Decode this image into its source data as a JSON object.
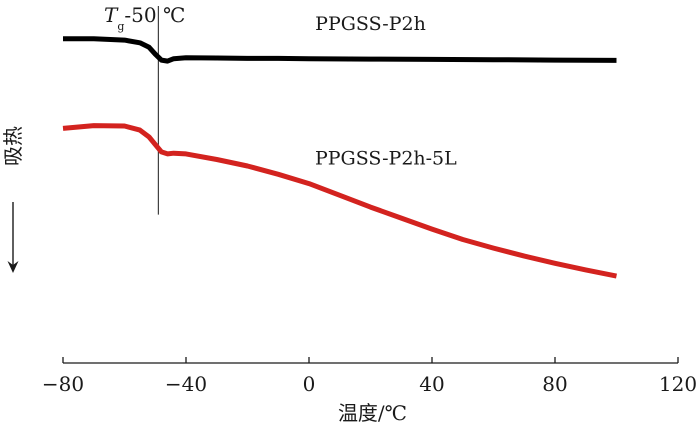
{
  "chart_data": {
    "type": "line",
    "title": "",
    "xlabel": "温度/℃",
    "ylabel": "吸热",
    "ylabel_arrow": "down",
    "xlim": [
      -80,
      120
    ],
    "xticks": [
      -80,
      -40,
      0,
      40,
      80,
      120
    ],
    "xtick_labels": [
      "−80",
      "−40",
      "0",
      "40",
      "80",
      "120"
    ],
    "y_scale": "relative heat flow (offset curves, no numeric axis)",
    "ylim": [
      0,
      100
    ],
    "annotation": {
      "text_italic": "T",
      "text_sub": "g",
      "text_rest": "-50 ℃",
      "x": -49,
      "ymin": 43,
      "ymax": 100
    },
    "series": [
      {
        "name": "PPGSS-P2h",
        "color": "#000000",
        "x": [
          -80,
          -70,
          -60,
          -55,
          -52,
          -50,
          -48,
          -46,
          -44,
          -40,
          -30,
          -20,
          -10,
          0,
          20,
          40,
          60,
          80,
          100
        ],
        "y": [
          94.0,
          94.0,
          93.6,
          92.8,
          91.5,
          89.5,
          87.8,
          87.5,
          88.2,
          88.5,
          88.4,
          88.3,
          88.3,
          88.2,
          88.1,
          88.0,
          87.9,
          87.8,
          87.7
        ]
      },
      {
        "name": "PPGSS-P2h-5L",
        "color": "#d3231f",
        "x": [
          -80,
          -70,
          -60,
          -55,
          -52,
          -50,
          -48,
          -46,
          -44,
          -40,
          -30,
          -20,
          -10,
          0,
          10,
          20,
          30,
          40,
          50,
          60,
          70,
          80,
          90,
          100
        ],
        "y": [
          68.0,
          68.8,
          68.7,
          67.5,
          65.5,
          63.3,
          61.2,
          60.6,
          60.8,
          60.6,
          59.0,
          57.1,
          54.7,
          52.0,
          48.6,
          45.2,
          42.0,
          38.8,
          35.8,
          33.3,
          31.0,
          28.9,
          27.0,
          25.2
        ]
      }
    ],
    "labels": [
      {
        "series": 0,
        "text": "PPGSS-P2h",
        "x": 20,
        "y": 96.5
      },
      {
        "series": 1,
        "text": "PPGSS-P2h-5L",
        "x": 25,
        "y": 57.5
      }
    ]
  }
}
